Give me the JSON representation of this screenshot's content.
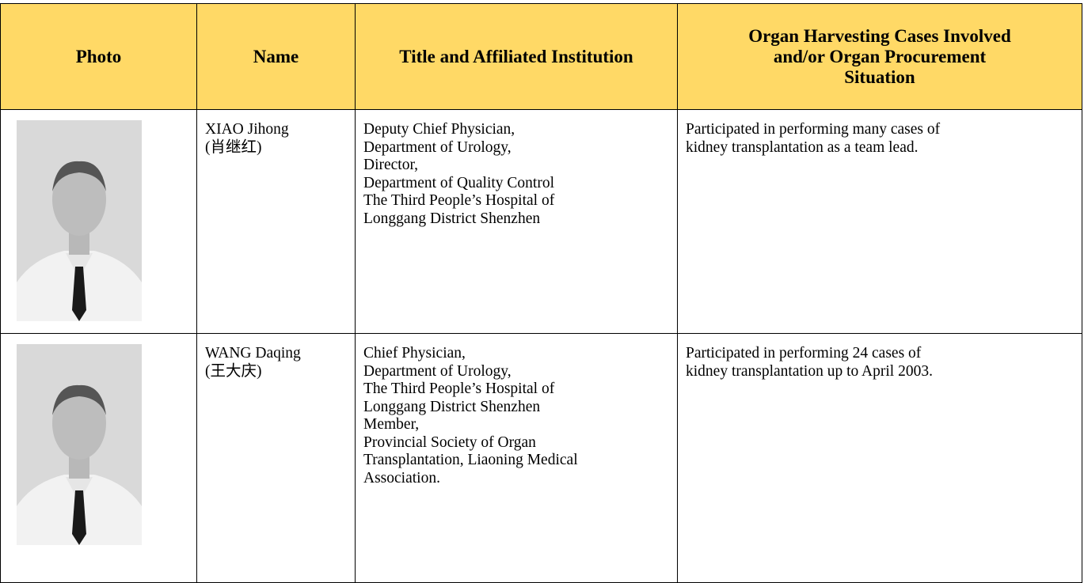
{
  "table": {
    "header": [
      "Photo",
      "Name",
      "Title and Affiliated Institution",
      [
        "Organ Harvesting Cases Involved",
        "and/or Organ Procurement",
        "Situation"
      ]
    ],
    "rows": [
      {
        "name": [
          "XIAO Jihong",
          "(肖继红)"
        ],
        "title": [
          "Deputy Chief Physician,",
          "Department of Urology,",
          "Director,",
          "Department of Quality Control",
          "The Third People’s Hospital of",
          "Longgang District Shenzhen"
        ],
        "cases": [
          "Participated in performing many cases of",
          "kidney transplantation as a team lead."
        ]
      },
      {
        "name": [
          "WANG Daqing",
          "(王大庆)"
        ],
        "title": [
          "Chief Physician,",
          "Department of Urology,",
          "The Third People’s Hospital of",
          "Longgang District Shenzhen",
          "Member,",
          "Provincial Society of Organ",
          "Transplantation, Liaoning Medical",
          "Association."
        ],
        "cases": [
          "Participated in performing 24 cases of",
          "kidney transplantation up to April 2003."
        ]
      }
    ]
  }
}
